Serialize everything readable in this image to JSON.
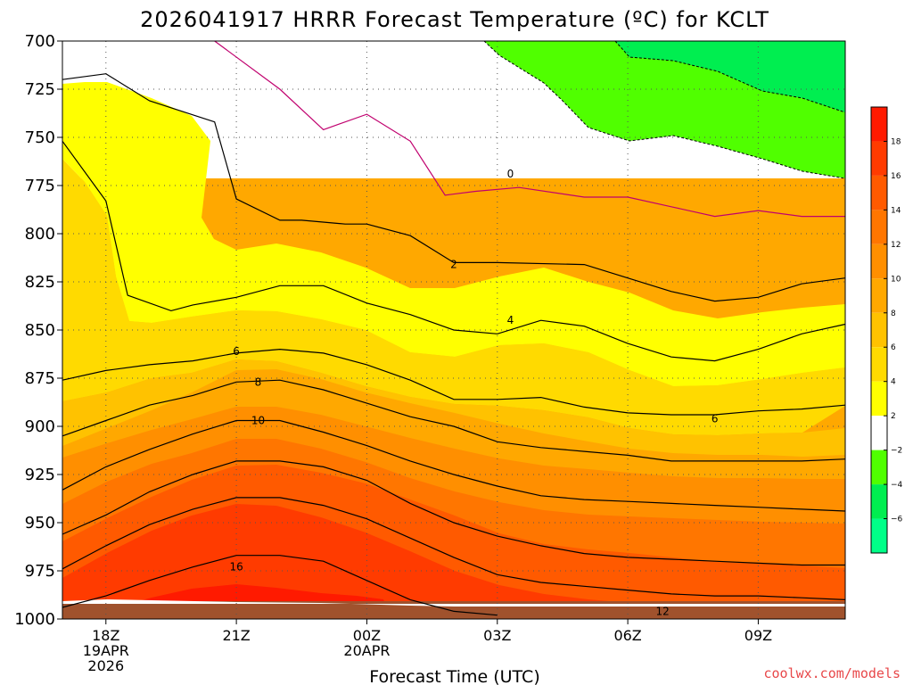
{
  "chart_data": {
    "type": "heatmap",
    "title": "2026041917 HRRR Forecast Temperature (ºC) for KCLT",
    "xlabel": "Forecast Time (UTC)",
    "ylabel": "",
    "x_ticks": [
      {
        "line1": "18Z",
        "line2": "19APR",
        "line3": "2026"
      },
      {
        "line1": "21Z",
        "line2": "",
        "line3": ""
      },
      {
        "line1": "00Z",
        "line2": "20APR",
        "line3": ""
      },
      {
        "line1": "03Z",
        "line2": "",
        "line3": ""
      },
      {
        "line1": "06Z",
        "line2": "",
        "line3": ""
      },
      {
        "line1": "09Z",
        "line2": "",
        "line3": ""
      }
    ],
    "x_tick_hours": [
      1,
      4,
      7,
      10,
      13,
      16
    ],
    "xlim_hours": [
      0,
      18
    ],
    "y_ticks": [
      700,
      725,
      750,
      775,
      800,
      825,
      850,
      875,
      900,
      925,
      950,
      975,
      1000
    ],
    "ylim_hpa": [
      700,
      1000
    ],
    "y_inverted": true,
    "grid": true,
    "colorbar": {
      "labels": [
        "18",
        "16",
        "14",
        "12",
        "10",
        "8",
        "6",
        "4",
        "2",
        "−2",
        "−4",
        "−6"
      ],
      "bins": [
        {
          "lo": 18,
          "hi": 20,
          "color": "#ff1a00"
        },
        {
          "lo": 16,
          "hi": 18,
          "color": "#ff3b00"
        },
        {
          "lo": 14,
          "hi": 16,
          "color": "#ff5a00"
        },
        {
          "lo": 12,
          "hi": 14,
          "color": "#ff7600"
        },
        {
          "lo": 10,
          "hi": 12,
          "color": "#ff8f00"
        },
        {
          "lo": 8,
          "hi": 10,
          "color": "#ffa800"
        },
        {
          "lo": 6,
          "hi": 8,
          "color": "#ffc200"
        },
        {
          "lo": 4,
          "hi": 6,
          "color": "#ffda00"
        },
        {
          "lo": 2,
          "hi": 4,
          "color": "#ffff00"
        },
        {
          "lo": -2,
          "hi": 2,
          "color": "#ffffff"
        },
        {
          "lo": -4,
          "hi": -2,
          "color": "#50ff00"
        },
        {
          "lo": -6,
          "hi": -4,
          "color": "#00ee50"
        },
        {
          "lo": -8,
          "hi": -6,
          "color": "#00ff88"
        }
      ]
    },
    "contour_labels": [
      {
        "value": 0,
        "hour": 10.3,
        "hpa": 769,
        "text": "0"
      },
      {
        "value": 2,
        "hour": 9.0,
        "hpa": 816,
        "text": "2"
      },
      {
        "value": 4,
        "hour": 10.3,
        "hpa": 845,
        "text": "4"
      },
      {
        "value": 6,
        "hour": 4.0,
        "hpa": 861,
        "text": "6"
      },
      {
        "value": 6,
        "hour": 15.0,
        "hpa": 896,
        "text": "6"
      },
      {
        "value": 8,
        "hour": 4.5,
        "hpa": 877,
        "text": "8"
      },
      {
        "value": 10,
        "hour": 4.5,
        "hpa": 897,
        "text": "10"
      },
      {
        "value": 12,
        "hour": 13.8,
        "hpa": 996,
        "text": "12"
      },
      {
        "value": 16,
        "hour": 4.0,
        "hpa": 973,
        "text": "16"
      }
    ],
    "pressure_contours": [
      {
        "value": 0,
        "hours": [
          3.5,
          5.0,
          6.0,
          7.0,
          8.0,
          8.8,
          9.5,
          10.5,
          12.0,
          13.0,
          14.0,
          15.0,
          16.0,
          17.0,
          18.0
        ],
        "hpa": [
          700,
          725,
          746,
          738,
          752,
          780,
          778,
          776,
          781,
          781,
          786,
          791,
          788,
          791,
          791
        ]
      },
      {
        "value": 2,
        "hours": [
          0,
          1.0,
          2.0,
          3.5,
          4.0,
          5.0,
          5.5,
          6.5,
          7.0,
          8.0,
          9.0,
          10.0,
          12.0,
          13.0,
          14.0,
          15.0,
          16.0,
          17.0,
          18.0
        ],
        "hpa": [
          720,
          717,
          731,
          742,
          782,
          793,
          793,
          795,
          795,
          801,
          815,
          815,
          816,
          823,
          830,
          835,
          833,
          826,
          823
        ]
      },
      {
        "value": 4,
        "hours": [
          0,
          1.0,
          1.5,
          2.5,
          3.0,
          4.0,
          5.0,
          6.0,
          7.0,
          8.0,
          9.0,
          10.0,
          11.0,
          12.0,
          13.0,
          14.0,
          15.0,
          16.0,
          17.0,
          18.0
        ],
        "hpa": [
          752,
          783,
          832,
          840,
          837,
          833,
          827,
          827,
          836,
          842,
          850,
          852,
          845,
          848,
          857,
          864,
          866,
          860,
          852,
          847
        ]
      },
      {
        "value": 6,
        "hours": [
          0,
          1.0,
          2.0,
          3.0,
          4.0,
          5.0,
          6.0,
          7.0,
          8.0,
          9.0,
          10.0,
          11.0,
          12.0,
          13.0,
          14.0,
          15.0,
          16.0,
          17.0,
          18.0
        ],
        "hpa": [
          876,
          871,
          868,
          866,
          862,
          860,
          862,
          868,
          876,
          886,
          886,
          885,
          890,
          893,
          894,
          894,
          892,
          891,
          889
        ]
      },
      {
        "value": 8,
        "hours": [
          0,
          1.0,
          2.0,
          3.0,
          4.0,
          5.0,
          6.0,
          7.0,
          8.0,
          9.0,
          10.0,
          11.0,
          12.0,
          13.0,
          14.0,
          15.0,
          16.0,
          17.0,
          18.0
        ],
        "hpa": [
          905,
          897,
          889,
          884,
          877,
          876,
          881,
          888,
          895,
          900,
          908,
          911,
          913,
          915,
          918,
          918,
          918,
          918,
          917
        ]
      },
      {
        "value": 10,
        "hours": [
          0,
          1.0,
          2.0,
          3.0,
          4.0,
          5.0,
          6.0,
          7.0,
          8.0,
          9.0,
          10.0,
          11.0,
          12.0,
          13.0,
          14.0,
          15.0,
          16.0,
          17.0,
          18.0
        ],
        "hpa": [
          933,
          921,
          912,
          904,
          897,
          897,
          903,
          910,
          918,
          925,
          931,
          936,
          938,
          939,
          940,
          941,
          942,
          943,
          944
        ]
      },
      {
        "value": 12,
        "hours": [
          0,
          1.0,
          2.0,
          3.0,
          4.0,
          5.0,
          6.0,
          7.0,
          8.0,
          9.0,
          10.0,
          11.0,
          12.0,
          13.0,
          14.0,
          15.0,
          16.0,
          17.0,
          18.0
        ],
        "hpa": [
          956,
          946,
          934,
          925,
          918,
          918,
          921,
          928,
          940,
          950,
          957,
          962,
          966,
          968,
          969,
          970,
          971,
          972,
          972
        ]
      },
      {
        "value": 14,
        "hours": [
          0,
          1.0,
          2.0,
          3.0,
          4.0,
          5.0,
          6.0,
          7.0,
          8.0,
          9.0,
          10.0,
          11.0,
          12.0,
          13.0,
          14.0,
          15.0,
          16.0,
          17.0,
          18.0
        ],
        "hpa": [
          974,
          962,
          951,
          943,
          937,
          937,
          941,
          948,
          958,
          968,
          977,
          981,
          983,
          985,
          987,
          988,
          988,
          989,
          990
        ]
      },
      {
        "value": 16,
        "hours": [
          0,
          1.0,
          2.0,
          3.0,
          4.0,
          5.0,
          6.0,
          7.0,
          8.0,
          9.0,
          10.0
        ],
        "hpa": [
          994,
          988,
          980,
          973,
          967,
          967,
          970,
          980,
          990,
          996,
          998
        ]
      }
    ],
    "surface_pressure_hpa": 996,
    "annotation": "coolwx.com/models"
  }
}
